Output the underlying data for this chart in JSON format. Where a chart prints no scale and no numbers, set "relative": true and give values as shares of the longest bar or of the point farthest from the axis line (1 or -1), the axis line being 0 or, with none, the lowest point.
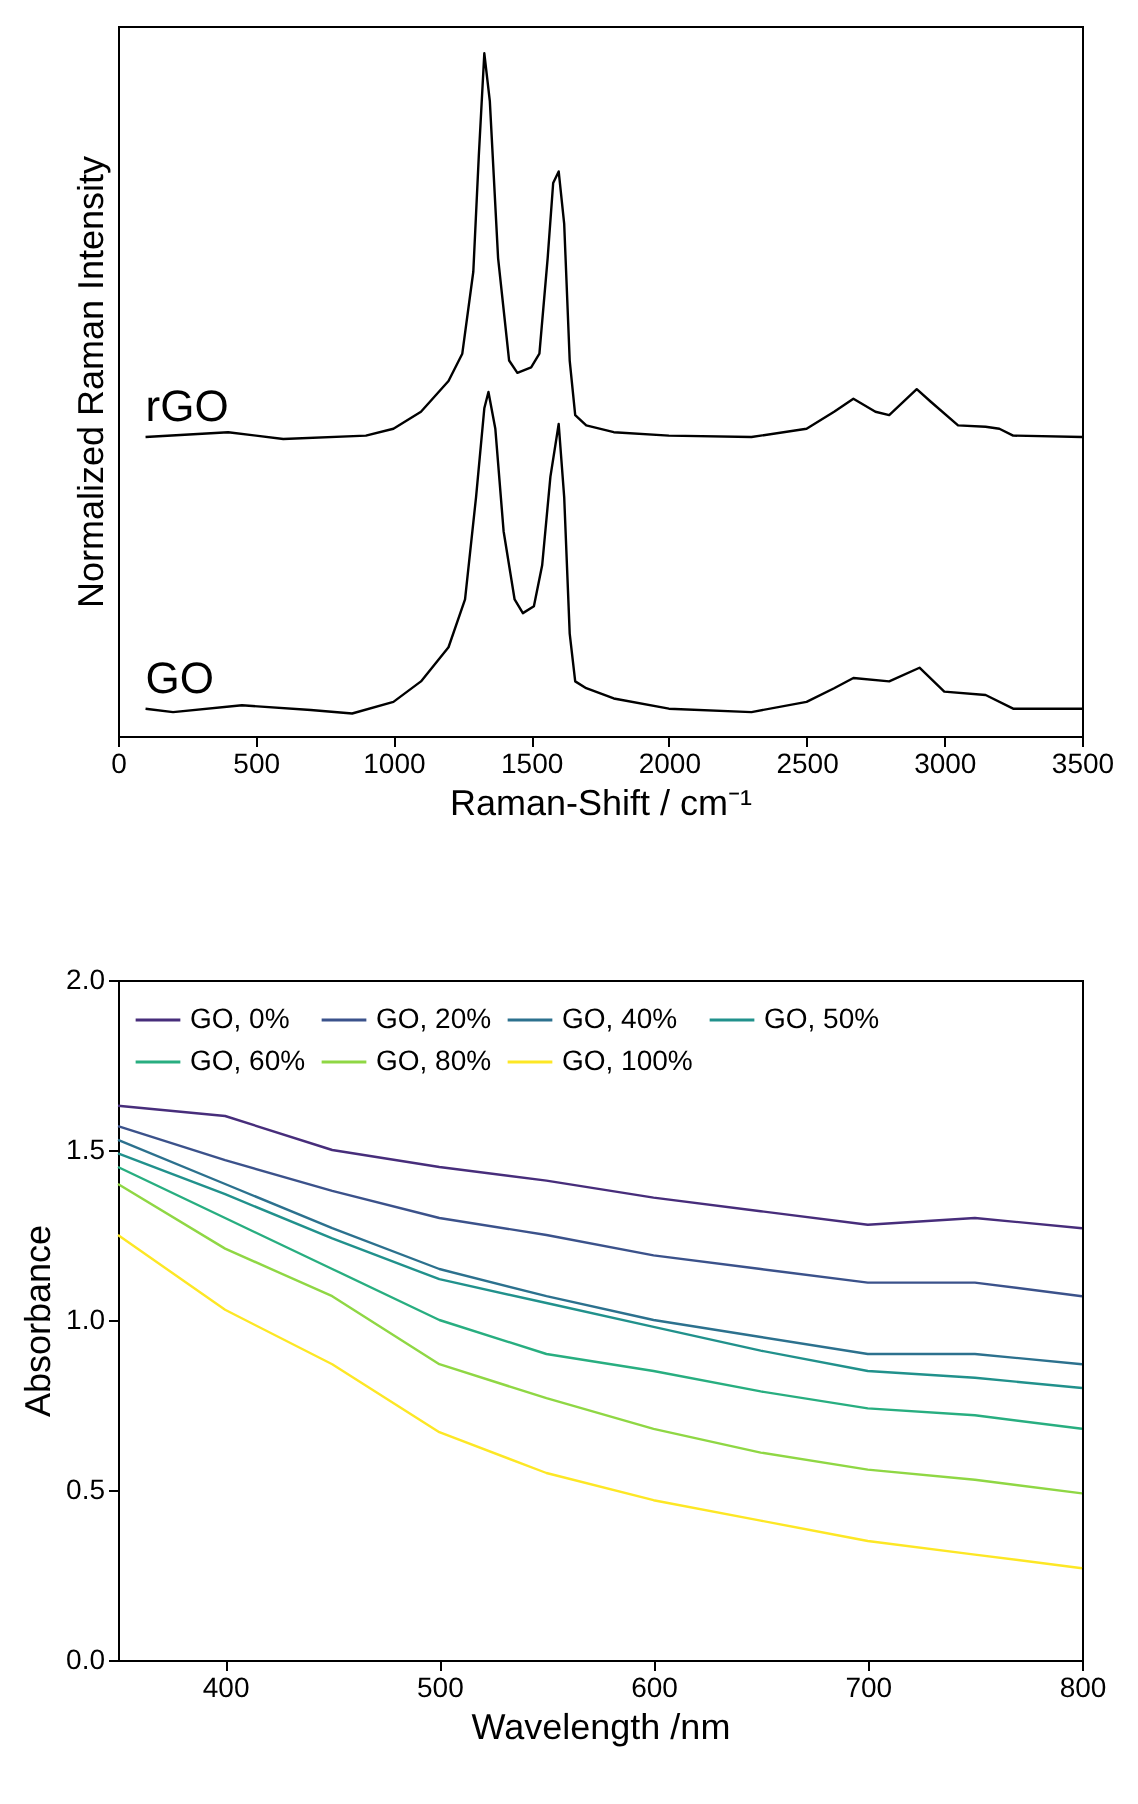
{
  "chart_data": [
    {
      "type": "line",
      "relative": true,
      "xlabel": "Raman-Shift / cm⁻¹",
      "ylabel": "Normalized Raman Intensity",
      "xlim": [
        0,
        3500
      ],
      "xticks": [
        0,
        500,
        1000,
        1500,
        2000,
        2500,
        3000,
        3500
      ],
      "grid": false,
      "legend": false,
      "series": [
        {
          "name": "rGO",
          "color": "#000000",
          "x": [
            100,
            400,
            600,
            900,
            1000,
            1100,
            1200,
            1250,
            1290,
            1310,
            1330,
            1350,
            1380,
            1420,
            1450,
            1500,
            1530,
            1560,
            1580,
            1600,
            1620,
            1640,
            1660,
            1700,
            1800,
            2000,
            2300,
            2500,
            2600,
            2670,
            2750,
            2800,
            2900,
            2950,
            3050,
            3150,
            3200,
            3250,
            3500
          ],
          "values": [
            0.438,
            0.445,
            0.435,
            0.44,
            0.45,
            0.475,
            0.52,
            0.56,
            0.68,
            0.85,
            1.0,
            0.93,
            0.7,
            0.55,
            0.532,
            0.54,
            0.56,
            0.7,
            0.81,
            0.827,
            0.75,
            0.55,
            0.47,
            0.455,
            0.445,
            0.44,
            0.438,
            0.45,
            0.475,
            0.494,
            0.475,
            0.47,
            0.508,
            0.49,
            0.455,
            0.453,
            0.45,
            0.44,
            0.438
          ]
        },
        {
          "name": "GO",
          "color": "#000000",
          "x": [
            100,
            200,
            450,
            700,
            850,
            1000,
            1100,
            1200,
            1260,
            1300,
            1330,
            1345,
            1370,
            1400,
            1440,
            1470,
            1510,
            1540,
            1570,
            1600,
            1620,
            1640,
            1660,
            1700,
            1800,
            2000,
            2300,
            2500,
            2600,
            2670,
            2800,
            2910,
            3000,
            3150,
            3250,
            3500
          ],
          "values": [
            0.04,
            0.035,
            0.045,
            0.038,
            0.033,
            0.05,
            0.08,
            0.13,
            0.2,
            0.35,
            0.48,
            0.504,
            0.45,
            0.3,
            0.2,
            0.18,
            0.19,
            0.25,
            0.38,
            0.457,
            0.35,
            0.15,
            0.08,
            0.07,
            0.055,
            0.04,
            0.035,
            0.05,
            0.07,
            0.085,
            0.08,
            0.1,
            0.065,
            0.06,
            0.04,
            0.04
          ]
        }
      ]
    },
    {
      "type": "line",
      "xlabel": "Wavelength /nm",
      "ylabel": "Absorbance",
      "xlim": [
        350,
        800
      ],
      "xticks": [
        400,
        500,
        600,
        700,
        800
      ],
      "ylim": [
        0,
        2
      ],
      "yticks": [
        {
          "value": 0,
          "label": "0.0"
        },
        {
          "value": 0.5,
          "label": "0.5"
        },
        {
          "value": 1,
          "label": "1.0"
        },
        {
          "value": 1.5,
          "label": "1.5"
        },
        {
          "value": 2,
          "label": "2.0"
        }
      ],
      "grid": false,
      "legend": "top left",
      "x": [
        350,
        400,
        450,
        500,
        550,
        600,
        650,
        700,
        750,
        800
      ],
      "series": [
        {
          "name": "GO, 0%",
          "color": "#472d7b",
          "values": [
            1.63,
            1.6,
            1.5,
            1.45,
            1.41,
            1.36,
            1.32,
            1.28,
            1.3,
            1.27
          ]
        },
        {
          "name": "GO, 20%",
          "color": "#3b528b",
          "values": [
            1.57,
            1.47,
            1.38,
            1.3,
            1.25,
            1.19,
            1.15,
            1.11,
            1.11,
            1.07
          ]
        },
        {
          "name": "GO, 40%",
          "color": "#2c718e",
          "values": [
            1.53,
            1.4,
            1.27,
            1.15,
            1.07,
            1.0,
            0.95,
            0.9,
            0.9,
            0.87
          ]
        },
        {
          "name": "GO, 50%",
          "color": "#21918c",
          "values": [
            1.49,
            1.37,
            1.24,
            1.12,
            1.05,
            0.98,
            0.91,
            0.85,
            0.83,
            0.8
          ]
        },
        {
          "name": "GO, 60%",
          "color": "#28ae80",
          "values": [
            1.45,
            1.3,
            1.15,
            1.0,
            0.9,
            0.85,
            0.79,
            0.74,
            0.72,
            0.68
          ]
        },
        {
          "name": "GO, 80%",
          "color": "#8fd744",
          "values": [
            1.4,
            1.21,
            1.07,
            0.87,
            0.77,
            0.68,
            0.61,
            0.56,
            0.53,
            0.49
          ]
        },
        {
          "name": "GO, 100%",
          "color": "#fde725",
          "values": [
            1.25,
            1.03,
            0.87,
            0.67,
            0.55,
            0.47,
            0.41,
            0.35,
            0.31,
            0.27
          ]
        }
      ]
    }
  ]
}
